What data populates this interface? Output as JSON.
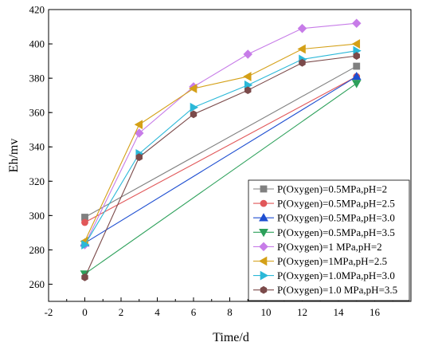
{
  "chart_data": {
    "type": "line",
    "title": "",
    "xlabel": "Time/d",
    "ylabel": "Eh/mv",
    "xlim": [
      -2,
      18
    ],
    "ylim": [
      250,
      420
    ],
    "xticks": [
      "-2",
      "0",
      "2",
      "4",
      "6",
      "8",
      "10",
      "12",
      "14",
      "16"
    ],
    "xtick_values": [
      -2,
      0,
      2,
      4,
      6,
      8,
      10,
      12,
      14,
      16
    ],
    "yticks": [
      "260",
      "280",
      "300",
      "320",
      "340",
      "360",
      "380",
      "400",
      "420"
    ],
    "ytick_values": [
      260,
      280,
      300,
      320,
      340,
      360,
      380,
      400,
      420
    ],
    "grid": false,
    "legend_position": "bottom-right",
    "series": [
      {
        "name": "P(Oxygen)=0.5MPa,pH=2",
        "color": "#808080",
        "marker": "square",
        "x": [
          0,
          15
        ],
        "y": [
          299,
          387
        ]
      },
      {
        "name": "P(Oxygen)=0.5MPa,pH=2.5",
        "color": "#e15759",
        "marker": "circle",
        "x": [
          0,
          15
        ],
        "y": [
          296,
          381
        ]
      },
      {
        "name": "P(Oxygen)=0.5MPa,pH=3.0",
        "color": "#1f4fd1",
        "marker": "triangle-up",
        "x": [
          0,
          15
        ],
        "y": [
          284,
          381
        ]
      },
      {
        "name": "P(Oxygen)=0.5MPa,pH=3.5",
        "color": "#2ca05a",
        "marker": "triangle-down",
        "x": [
          0,
          15
        ],
        "y": [
          266,
          377
        ]
      },
      {
        "name": "P(Oxygen)=1 MPa,pH=2",
        "color": "#c77ce8",
        "marker": "diamond",
        "x": [
          0,
          3,
          6,
          9,
          12,
          15
        ],
        "y": [
          283,
          348,
          375,
          394,
          409,
          412
        ]
      },
      {
        "name": "P(Oxygen)=1MPa,pH=2.5",
        "color": "#d4a017",
        "marker": "triangle-left",
        "x": [
          0,
          3,
          6,
          9,
          12,
          15
        ],
        "y": [
          285,
          353,
          374,
          381,
          397,
          400
        ]
      },
      {
        "name": "P(Oxygen)=1.0MPa,pH=3.0",
        "color": "#2bb8d8",
        "marker": "triangle-right",
        "x": [
          0,
          3,
          6,
          9,
          12,
          15
        ],
        "y": [
          283,
          336,
          363,
          376,
          391,
          396
        ]
      },
      {
        "name": "P(Oxygen)=1.0 MPa,pH=3.5",
        "color": "#7b4a4a",
        "marker": "hexagon",
        "x": [
          0,
          3,
          6,
          9,
          12,
          15
        ],
        "y": [
          264,
          334,
          359,
          373,
          389,
          393
        ]
      }
    ]
  }
}
